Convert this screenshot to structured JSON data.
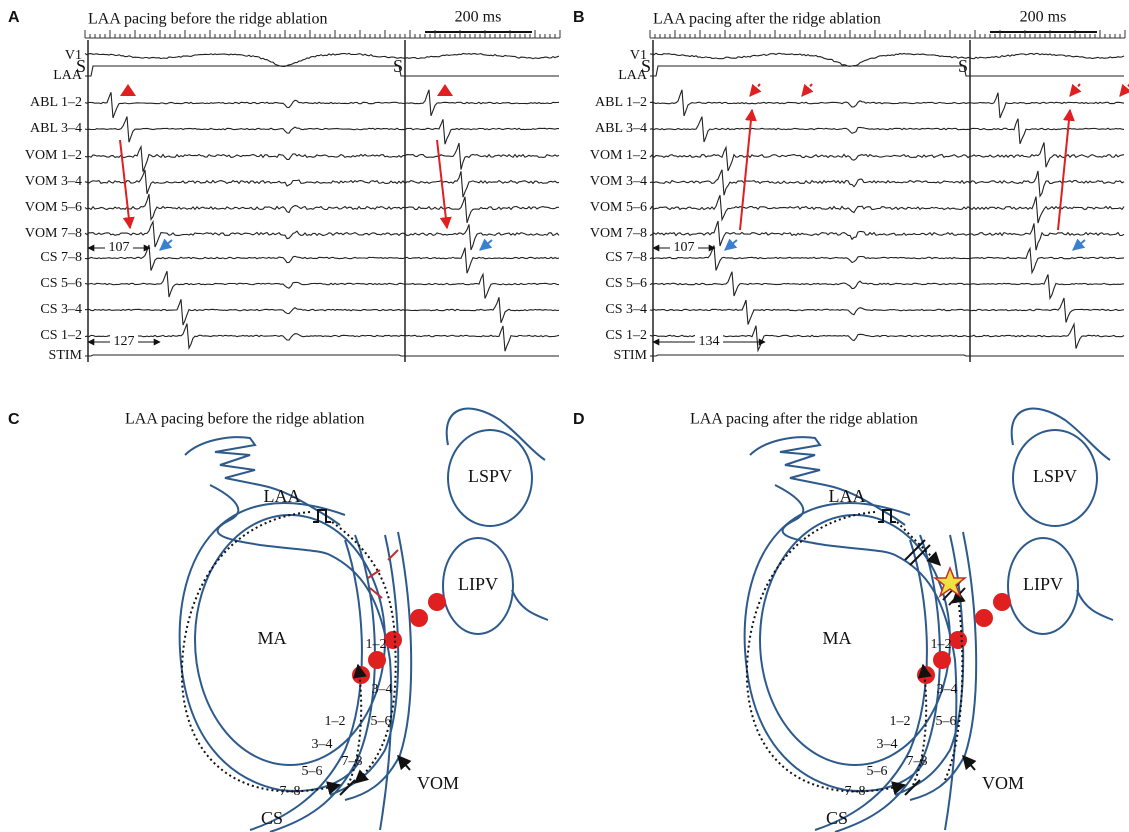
{
  "panels": [
    {
      "letter": "A",
      "title": "LAA pacing before the ridge ablation",
      "scale": "200 ms",
      "channels": [
        "V1",
        "LAA",
        "ABL 1–2",
        "ABL 3–4",
        "VOM 1–2",
        "VOM 3–4",
        "VOM 5–6",
        "VOM 7–8",
        "CS 7–8",
        "CS 5–6",
        "CS 3–4",
        "CS 1–2",
        "STIM"
      ],
      "stim_markers": [
        "S",
        "S"
      ],
      "intervals": [
        "107",
        "127"
      ]
    },
    {
      "letter": "B",
      "title": "LAA pacing after the ridge ablation",
      "scale": "200 ms",
      "channels": [
        "V1",
        "LAA",
        "ABL 1–2",
        "ABL 3–4",
        "VOM 1–2",
        "VOM 3–4",
        "VOM 5–6",
        "VOM 7–8",
        "CS 7–8",
        "CS 5–6",
        "CS 3–4",
        "CS 1–2",
        "STIM"
      ],
      "stim_markers": [
        "S",
        "S"
      ],
      "intervals": [
        "107",
        "134"
      ]
    },
    {
      "letter": "C",
      "title": "LAA pacing before the ridge ablation",
      "labels": {
        "lspv": "LSPV",
        "lipv": "LIPV",
        "laa": "LAA",
        "ma": "MA",
        "cs": "CS",
        "vom": "VOM"
      },
      "cs_electrodes": [
        "1–2",
        "3–4",
        "5–6",
        "7–8"
      ],
      "vom_electrodes": [
        "1–2",
        "3–4",
        "5–6",
        "7–8"
      ]
    },
    {
      "letter": "D",
      "title": "LAA pacing after the ridge ablation",
      "labels": {
        "lspv": "LSPV",
        "lipv": "LIPV",
        "laa": "LAA",
        "ma": "MA",
        "cs": "CS",
        "vom": "VOM"
      },
      "cs_electrodes": [
        "1–2",
        "3–4",
        "5–6",
        "7–8"
      ],
      "vom_electrodes": [
        "1–2",
        "3–4",
        "5–6",
        "7–8"
      ]
    }
  ]
}
